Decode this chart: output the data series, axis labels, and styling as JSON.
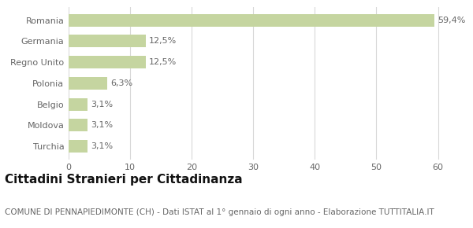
{
  "categories": [
    "Turchia",
    "Moldova",
    "Belgio",
    "Polonia",
    "Regno Unito",
    "Germania",
    "Romania"
  ],
  "values": [
    3.1,
    3.1,
    3.1,
    6.3,
    12.5,
    12.5,
    59.4
  ],
  "labels": [
    "3,1%",
    "3,1%",
    "3,1%",
    "6,3%",
    "12,5%",
    "12,5%",
    "59,4%"
  ],
  "bar_color": "#c5d5a0",
  "background_color": "#ffffff",
  "grid_color": "#d8d8d8",
  "title": "Cittadini Stranieri per Cittadinanza",
  "subtitle": "COMUNE DI PENNAPIEDIMONTE (CH) - Dati ISTAT al 1° gennaio di ogni anno - Elaborazione TUTTITALIA.IT",
  "xlim": [
    0,
    63
  ],
  "xticks": [
    0,
    10,
    20,
    30,
    40,
    50,
    60
  ],
  "title_fontsize": 11,
  "subtitle_fontsize": 7.5,
  "label_fontsize": 8,
  "tick_fontsize": 8,
  "bar_label_fontsize": 8,
  "text_color": "#666666",
  "title_color": "#111111",
  "subtitle_color": "#666666"
}
